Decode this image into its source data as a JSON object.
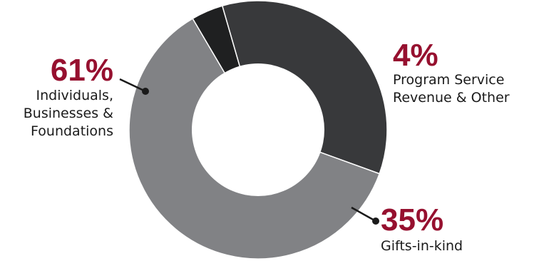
{
  "chart_data": {
    "type": "pie",
    "title": "",
    "donut": true,
    "slices": [
      {
        "value": 61,
        "percent_label": "61%",
        "label_lines": [
          "Individuals,",
          "Businesses &",
          "Foundations"
        ],
        "color": "#818285"
      },
      {
        "value": 4,
        "percent_label": "4%",
        "label_lines": [
          "Program Service",
          "Revenue & Other"
        ],
        "color": "#1f2021"
      },
      {
        "value": 35,
        "percent_label": "35%",
        "label_lines": [
          "Gifts-in-kind"
        ],
        "color": "#38393b"
      }
    ],
    "percent_color": "#96102f",
    "label_color": "#1a1a1a",
    "hole_color": "#ffffff",
    "legend": "none",
    "grid": false
  }
}
